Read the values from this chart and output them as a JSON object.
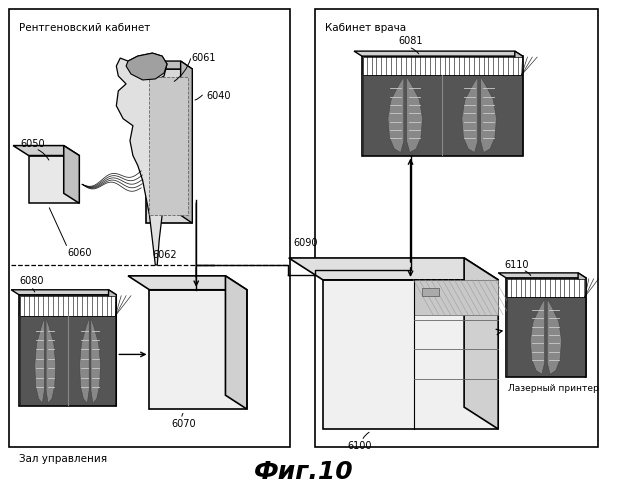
{
  "title": "Фиг.10",
  "bg_color": "#ffffff",
  "left_box_label": "Рентгеновский кабинет",
  "right_box_label": "Кабинет врача",
  "zal_label": "Зал управления",
  "laser_label": "Лазерный принтер"
}
